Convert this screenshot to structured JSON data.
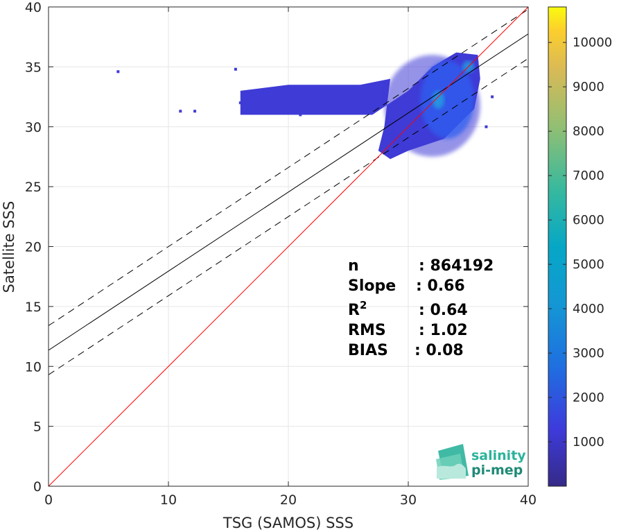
{
  "chart_data": {
    "type": "heatmap",
    "xlabel": "TSG (SAMOS) SSS",
    "ylabel": "Satellite SSS",
    "xlim": [
      0,
      40
    ],
    "ylim": [
      0,
      40
    ],
    "x_ticks": [
      0,
      10,
      20,
      30,
      40
    ],
    "y_ticks": [
      0,
      5,
      10,
      15,
      20,
      25,
      30,
      35,
      40
    ],
    "grid": true,
    "colormap": "parula",
    "colorbar": {
      "range": [
        0,
        10800
      ],
      "ticks": [
        1000,
        2000,
        3000,
        4000,
        5000,
        6000,
        7000,
        8000,
        9000,
        10000
      ]
    },
    "lines": {
      "identity": {
        "slope": 1,
        "intercept": 0,
        "color": "#ff0000"
      },
      "fit": {
        "slope": 0.66,
        "intercept": 11.35,
        "color": "#000000"
      },
      "fit_upper": {
        "slope": 0.66,
        "intercept": 13.4,
        "style": "dashed"
      },
      "fit_lower": {
        "slope": 0.66,
        "intercept": 9.3,
        "style": "dashed"
      }
    },
    "density_blobs": [
      {
        "x0": 28,
        "x1": 36,
        "y0": 27.5,
        "y1": 36,
        "level": "low"
      },
      {
        "x0": 31,
        "x1": 35.5,
        "y0": 29,
        "y1": 35.5,
        "level": "medium"
      },
      {
        "x0": 32,
        "x1": 33,
        "y0": 31.5,
        "y1": 33,
        "level": "high"
      },
      {
        "x0": 34.5,
        "x1": 35.5,
        "y0": 34.5,
        "y1": 35.5,
        "level": "high"
      }
    ],
    "stats": [
      {
        "label": "n",
        "value": ": 864192"
      },
      {
        "label": "Slope",
        "value": ": 0.66"
      },
      {
        "label": "R",
        "sup": "2",
        "value": ": 0.64"
      },
      {
        "label": "RMS",
        "value": ": 1.02"
      },
      {
        "label": "BIAS",
        "value": ": 0.08"
      }
    ],
    "logo": {
      "line1": "salinity",
      "line2": "pi-mep"
    }
  }
}
